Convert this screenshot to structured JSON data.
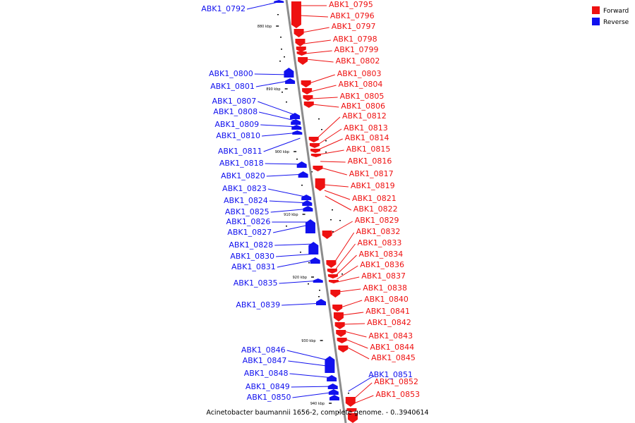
{
  "colors": {
    "forward": "#ee1111",
    "reverse": "#1111ee",
    "axis": "#8c8c8c"
  },
  "caption": "Acinetobacter baumannii 1656-2, complete genome. - 0..3940614",
  "legend": [
    {
      "label": "Forward",
      "color": "#ee1111"
    },
    {
      "label": "Reverse",
      "color": "#1111ee"
    }
  ],
  "axis": {
    "ticks": [
      "880 kbp",
      "890 kbp",
      "900 kbp",
      "910 kbp",
      "920 kbp",
      "930 kbp",
      "940 kbp"
    ]
  },
  "forward_genes": [
    "ABK1_0795",
    "ABK1_0796",
    "ABK1_0797",
    "ABK1_0798",
    "ABK1_0799",
    "ABK1_0802",
    "ABK1_0803",
    "ABK1_0804",
    "ABK1_0805",
    "ABK1_0806",
    "ABK1_0812",
    "ABK1_0813",
    "ABK1_0814",
    "ABK1_0815",
    "ABK1_0816",
    "ABK1_0817",
    "ABK1_0819",
    "ABK1_0821",
    "ABK1_0822",
    "ABK1_0829",
    "ABK1_0832",
    "ABK1_0833",
    "ABK1_0834",
    "ABK1_0836",
    "ABK1_0837",
    "ABK1_0838",
    "ABK1_0840",
    "ABK1_0841",
    "ABK1_0842",
    "ABK1_0843",
    "ABK1_0844",
    "ABK1_0845",
    "ABK1_0852",
    "ABK1_0853"
  ],
  "reverse_genes": [
    "ABK1_0792",
    "ABK1_0800",
    "ABK1_0801",
    "ABK1_0807",
    "ABK1_0808",
    "ABK1_0809",
    "ABK1_0810",
    "ABK1_0811",
    "ABK1_0818",
    "ABK1_0820",
    "ABK1_0823",
    "ABK1_0824",
    "ABK1_0825",
    "ABK1_0826",
    "ABK1_0827",
    "ABK1_0828",
    "ABK1_0830",
    "ABK1_0831",
    "ABK1_0835",
    "ABK1_0839",
    "ABK1_0846",
    "ABK1_0847",
    "ABK1_0848",
    "ABK1_0849",
    "ABK1_0850",
    "ABK1_0851"
  ]
}
